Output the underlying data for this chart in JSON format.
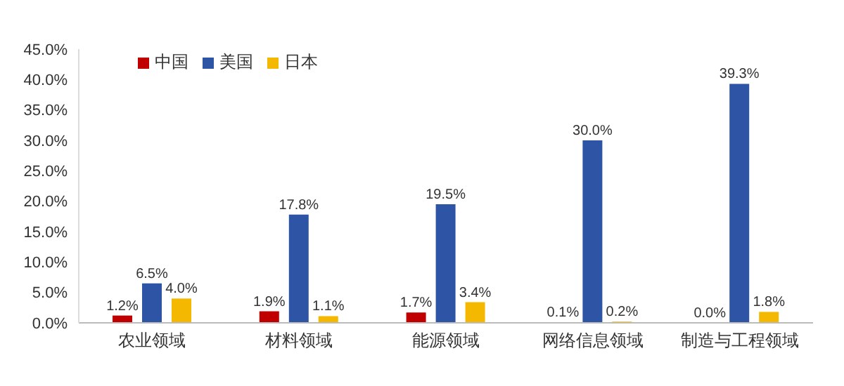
{
  "chart_data": {
    "type": "bar",
    "categories": [
      "农业领域",
      "材料领域",
      "能源领域",
      "网络信息领域",
      "制造与工程领域"
    ],
    "series": [
      {
        "name": "中国",
        "color": "#c00000",
        "values": [
          1.2,
          1.9,
          1.7,
          0.1,
          0.0
        ],
        "value_labels": [
          "1.2%",
          "1.9%",
          "1.7%",
          "0.1%",
          "0.0%"
        ]
      },
      {
        "name": "美国",
        "color": "#2e55a5",
        "values": [
          6.5,
          17.8,
          19.5,
          30.0,
          39.3
        ],
        "value_labels": [
          "6.5%",
          "17.8%",
          "19.5%",
          "30.0%",
          "39.3%"
        ]
      },
      {
        "name": "日本",
        "color": "#f5b800",
        "values": [
          4.0,
          1.1,
          3.4,
          0.2,
          1.8
        ],
        "value_labels": [
          "4.0%",
          "1.1%",
          "3.4%",
          "0.2%",
          "1.8%"
        ]
      }
    ],
    "ylim": [
      0,
      45
    ],
    "yticks": [
      {
        "value": 0,
        "label": "0.0%"
      },
      {
        "value": 5,
        "label": "5.0%"
      },
      {
        "value": 10,
        "label": "10.0%"
      },
      {
        "value": 15,
        "label": "15.0%"
      },
      {
        "value": 20,
        "label": "20.0%"
      },
      {
        "value": 25,
        "label": "25.0%"
      },
      {
        "value": 30,
        "label": "30.0%"
      },
      {
        "value": 35,
        "label": "35.0%"
      },
      {
        "value": 40,
        "label": "40.0%"
      },
      {
        "value": 45,
        "label": "45.0%"
      }
    ],
    "grid": false,
    "legend": "top left"
  }
}
